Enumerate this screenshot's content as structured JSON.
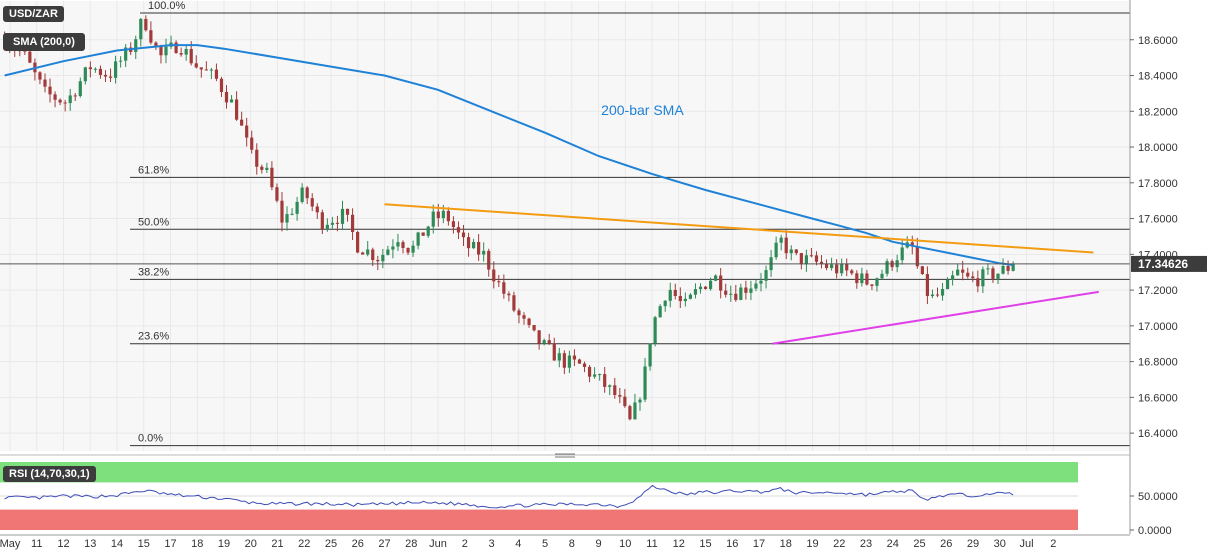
{
  "chart_data": [
    {
      "type": "candlestick",
      "symbol": "USD/ZAR",
      "indicator_label": "SMA (200,0)",
      "sma_label": "200-bar SMA",
      "price_axis": {
        "ylim": [
          16.3,
          18.8
        ],
        "ticks": [
          16.4,
          16.6,
          16.8,
          17.0,
          17.2,
          17.4,
          17.6,
          17.8,
          18.0,
          18.2,
          18.4,
          18.6
        ],
        "tick_labels": [
          "16.4000",
          "16.6000",
          "16.8000",
          "17.0000",
          "17.2000",
          "17.4000",
          "17.6000",
          "17.8000",
          "18.0000",
          "18.2000",
          "18.4000",
          "18.6000"
        ]
      },
      "last_price": 17.34626,
      "last_price_label": "17.34626",
      "x_axis": {
        "labels": [
          "May",
          "11",
          "12",
          "13",
          "14",
          "15",
          "17",
          "18",
          "19",
          "20",
          "21",
          "22",
          "25",
          "26",
          "27",
          "28",
          "Jun",
          "2",
          "3",
          "4",
          "5",
          "8",
          "9",
          "10",
          "11",
          "12",
          "15",
          "16",
          "17",
          "18",
          "19",
          "22",
          "23",
          "24",
          "25",
          "26",
          "29",
          "30",
          "Jul",
          "2"
        ],
        "positions": [
          0,
          1,
          2,
          3,
          4,
          5,
          6,
          7,
          8,
          9,
          10,
          11,
          12,
          13,
          14,
          15,
          16,
          17,
          18,
          19,
          20,
          21,
          22,
          23,
          24,
          25,
          26,
          27,
          28,
          29,
          30,
          31,
          32,
          33,
          34,
          35,
          36,
          37,
          38,
          39
        ]
      },
      "fib_levels": [
        {
          "label": "100.0%",
          "value": 18.75
        },
        {
          "label": "61.8%",
          "value": 17.83
        },
        {
          "label": "50.0%",
          "value": 17.54
        },
        {
          "label": "38.2%",
          "value": 17.26
        },
        {
          "label": "23.6%",
          "value": 16.9
        },
        {
          "label": "0.0%",
          "value": 16.33
        }
      ],
      "resistance_line": {
        "from": [
          14.0,
          17.68
        ],
        "to": [
          40.5,
          17.41
        ]
      },
      "support_line": {
        "from": [
          28.5,
          16.9
        ],
        "to": [
          40.7,
          17.19
        ]
      },
      "sma_path": [
        [
          -0.2,
          18.4
        ],
        [
          2,
          18.48
        ],
        [
          4,
          18.54
        ],
        [
          6,
          18.57
        ],
        [
          7,
          18.57
        ],
        [
          8,
          18.55
        ],
        [
          10,
          18.5
        ],
        [
          12,
          18.45
        ],
        [
          14,
          18.4
        ],
        [
          16,
          18.32
        ],
        [
          18,
          18.2
        ],
        [
          20,
          18.08
        ],
        [
          22,
          17.95
        ],
        [
          24,
          17.85
        ],
        [
          26,
          17.76
        ],
        [
          28,
          17.68
        ],
        [
          30,
          17.6
        ],
        [
          31,
          17.56
        ],
        [
          32,
          17.52
        ],
        [
          33,
          17.47
        ],
        [
          34,
          17.44
        ],
        [
          35,
          17.41
        ],
        [
          36,
          17.38
        ],
        [
          37,
          17.35
        ],
        [
          37.5,
          17.34
        ]
      ],
      "anchors": [
        [
          -0.2,
          18.6
        ],
        [
          0.5,
          18.52
        ],
        [
          1.3,
          18.3
        ],
        [
          2.1,
          18.25
        ],
        [
          3,
          18.45
        ],
        [
          3.7,
          18.4
        ],
        [
          4.5,
          18.55
        ],
        [
          5,
          18.72
        ],
        [
          5.6,
          18.5
        ],
        [
          6.3,
          18.58
        ],
        [
          7,
          18.45
        ],
        [
          7.7,
          18.38
        ],
        [
          8.4,
          18.22
        ],
        [
          9,
          17.95
        ],
        [
          9.6,
          17.85
        ],
        [
          10.2,
          17.58
        ],
        [
          11,
          17.75
        ],
        [
          11.6,
          17.58
        ],
        [
          12.5,
          17.62
        ],
        [
          13,
          17.45
        ],
        [
          13.8,
          17.38
        ],
        [
          14.5,
          17.5
        ],
        [
          15,
          17.42
        ],
        [
          15.8,
          17.6
        ],
        [
          16.3,
          17.62
        ],
        [
          17,
          17.45
        ],
        [
          17.7,
          17.4
        ],
        [
          18.2,
          17.25
        ],
        [
          18.8,
          17.1
        ],
        [
          19.5,
          16.95
        ],
        [
          20,
          16.88
        ],
        [
          20.7,
          16.8
        ],
        [
          21.3,
          16.78
        ],
        [
          22,
          16.7
        ],
        [
          22.7,
          16.6
        ],
        [
          23.2,
          16.45
        ],
        [
          23.7,
          16.7
        ],
        [
          24,
          17.0
        ],
        [
          24.6,
          17.22
        ],
        [
          25.2,
          17.1
        ],
        [
          25.7,
          17.2
        ],
        [
          26.3,
          17.28
        ],
        [
          27,
          17.18
        ],
        [
          27.6,
          17.22
        ],
        [
          28.3,
          17.3
        ],
        [
          28.8,
          17.48
        ],
        [
          29.3,
          17.38
        ],
        [
          30,
          17.36
        ],
        [
          30.8,
          17.32
        ],
        [
          31.3,
          17.3
        ],
        [
          32.1,
          17.24
        ],
        [
          32.6,
          17.3
        ],
        [
          33.2,
          17.4
        ],
        [
          33.7,
          17.45
        ],
        [
          34,
          17.28
        ],
        [
          34.4,
          17.15
        ],
        [
          34.9,
          17.18
        ],
        [
          35.4,
          17.3
        ],
        [
          35.9,
          17.25
        ],
        [
          36.5,
          17.28
        ],
        [
          37,
          17.3
        ],
        [
          37.5,
          17.34
        ]
      ]
    },
    {
      "type": "line",
      "indicator_label": "RSI (14,70,30,1)",
      "ylim": [
        0,
        100
      ],
      "ticks": [
        0,
        50
      ],
      "tick_labels": [
        "0.0000",
        "50.0000"
      ],
      "overbought": 70,
      "oversold": 30,
      "anchors": [
        [
          -0.2,
          48
        ],
        [
          1,
          47
        ],
        [
          2,
          50
        ],
        [
          3,
          49
        ],
        [
          4,
          51
        ],
        [
          5,
          58
        ],
        [
          6,
          52
        ],
        [
          7,
          49
        ],
        [
          8,
          46
        ],
        [
          9,
          40
        ],
        [
          10,
          38
        ],
        [
          11,
          39
        ],
        [
          12,
          38
        ],
        [
          13,
          37
        ],
        [
          14,
          38
        ],
        [
          15,
          40
        ],
        [
          16,
          40
        ],
        [
          17,
          38
        ],
        [
          18,
          34
        ],
        [
          19,
          36
        ],
        [
          20,
          37
        ],
        [
          21,
          38
        ],
        [
          22,
          38
        ],
        [
          22.8,
          35
        ],
        [
          23.4,
          45
        ],
        [
          24,
          64
        ],
        [
          24.6,
          58
        ],
        [
          25.2,
          52
        ],
        [
          26,
          56
        ],
        [
          26.5,
          55
        ],
        [
          27,
          58
        ],
        [
          28,
          56
        ],
        [
          28.8,
          60
        ],
        [
          29.5,
          54
        ],
        [
          30,
          55
        ],
        [
          31,
          55
        ],
        [
          32,
          52
        ],
        [
          33,
          56
        ],
        [
          33.7,
          58
        ],
        [
          34.1,
          44
        ],
        [
          34.6,
          48
        ],
        [
          35,
          52
        ],
        [
          36,
          51
        ],
        [
          36.6,
          54
        ],
        [
          37.5,
          53
        ]
      ]
    }
  ],
  "colors": {
    "up_candle": "#2e8b57",
    "down_candle": "#a23a3a",
    "sma": "#1f82d6",
    "resistance": "#f39c12",
    "support": "#e040e8",
    "rsi_line": "#3b4bb5",
    "overbought_fill": "#7de07d",
    "oversold_fill": "#f07575"
  }
}
